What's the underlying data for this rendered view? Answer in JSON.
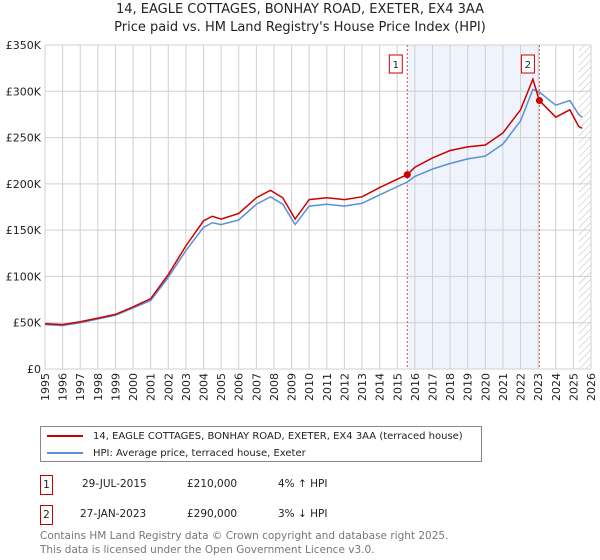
{
  "title": "14, EAGLE COTTAGES, BONHAY ROAD, EXETER, EX4 3AA",
  "subtitle": "Price paid vs. HM Land Registry's House Price Index (HPI)",
  "chart_data": {
    "type": "line",
    "xlim": [
      1995,
      2026
    ],
    "ylim": [
      0,
      350000
    ],
    "y_ticks": [
      {
        "v": 0,
        "label": "£0"
      },
      {
        "v": 50000,
        "label": "£50K"
      },
      {
        "v": 100000,
        "label": "£100K"
      },
      {
        "v": 150000,
        "label": "£150K"
      },
      {
        "v": 200000,
        "label": "£200K"
      },
      {
        "v": 250000,
        "label": "£250K"
      },
      {
        "v": 300000,
        "label": "£300K"
      },
      {
        "v": 350000,
        "label": "£350K"
      }
    ],
    "x_ticks": [
      "1995",
      "1996",
      "1997",
      "1998",
      "1999",
      "2000",
      "2001",
      "2002",
      "2003",
      "2004",
      "2005",
      "2006",
      "2007",
      "2008",
      "2009",
      "2010",
      "2011",
      "2012",
      "2013",
      "2014",
      "2015",
      "2016",
      "2017",
      "2018",
      "2019",
      "2020",
      "2021",
      "2022",
      "2023",
      "2024",
      "2025",
      "2026"
    ],
    "grid": true,
    "shaded_range": [
      2015.57,
      2023.07
    ],
    "hatched_from": 2025.3,
    "series": [
      {
        "name": "14, EAGLE COTTAGES, BONHAY ROAD, EXETER, EX4 3AA (terraced house)",
        "color": "#cc0000",
        "x": [
          1995,
          1996,
          1997,
          1998,
          1999,
          2000,
          2001,
          2002,
          2003,
          2004,
          2004.5,
          2005,
          2006,
          2007,
          2007.8,
          2008.5,
          2009.2,
          2010,
          2011,
          2012,
          2013,
          2014,
          2015,
          2015.57,
          2016,
          2017,
          2018,
          2019,
          2020,
          2021,
          2022,
          2022.7,
          2023.07,
          2024,
          2024.8,
          2025.3,
          2025.5
        ],
        "y": [
          49000,
          48000,
          51000,
          55000,
          59000,
          67000,
          76000,
          102000,
          133000,
          160000,
          165000,
          162000,
          168000,
          185000,
          193000,
          185000,
          162000,
          183000,
          185000,
          183000,
          186000,
          196000,
          205000,
          210000,
          218000,
          228000,
          236000,
          240000,
          242000,
          255000,
          280000,
          313000,
          290000,
          272000,
          280000,
          262000,
          260000
        ]
      },
      {
        "name": "HPI: Average price, terraced house, Exeter",
        "color": "#5b8fd6",
        "x": [
          1995,
          1996,
          1997,
          1998,
          1999,
          2000,
          2001,
          2002,
          2003,
          2004,
          2004.5,
          2005,
          2006,
          2007,
          2007.8,
          2008.5,
          2009.2,
          2010,
          2011,
          2012,
          2013,
          2014,
          2015,
          2015.57,
          2016,
          2017,
          2018,
          2019,
          2020,
          2021,
          2022,
          2022.7,
          2023.07,
          2024,
          2024.8,
          2025.3,
          2025.5
        ],
        "y": [
          48000,
          47000,
          50000,
          54000,
          58000,
          66000,
          74000,
          99000,
          128000,
          153000,
          158000,
          156000,
          161000,
          178000,
          186000,
          178000,
          156000,
          176000,
          178000,
          176000,
          179000,
          188000,
          197000,
          202000,
          208000,
          216000,
          222000,
          227000,
          230000,
          243000,
          268000,
          302000,
          299000,
          285000,
          290000,
          275000,
          272000
        ]
      }
    ],
    "markers": [
      {
        "label": "1",
        "x": 2015.57,
        "y": 210000
      },
      {
        "label": "2",
        "x": 2023.07,
        "y": 290000
      }
    ]
  },
  "legend": [
    {
      "label": "14, EAGLE COTTAGES, BONHAY ROAD, EXETER, EX4 3AA (terraced house)",
      "color": "#cc0000"
    },
    {
      "label": "HPI: Average price, terraced house, Exeter",
      "color": "#5b8fd6"
    }
  ],
  "transactions": [
    {
      "num": "1",
      "date": "29-JUL-2015",
      "price": "£210,000",
      "hpi": "4% ↑ HPI"
    },
    {
      "num": "2",
      "date": "27-JAN-2023",
      "price": "£290,000",
      "hpi": "3% ↓ HPI"
    }
  ],
  "footer": [
    "Contains HM Land Registry data © Crown copyright and database right 2025.",
    "This data is licensed under the Open Government Licence v3.0."
  ]
}
